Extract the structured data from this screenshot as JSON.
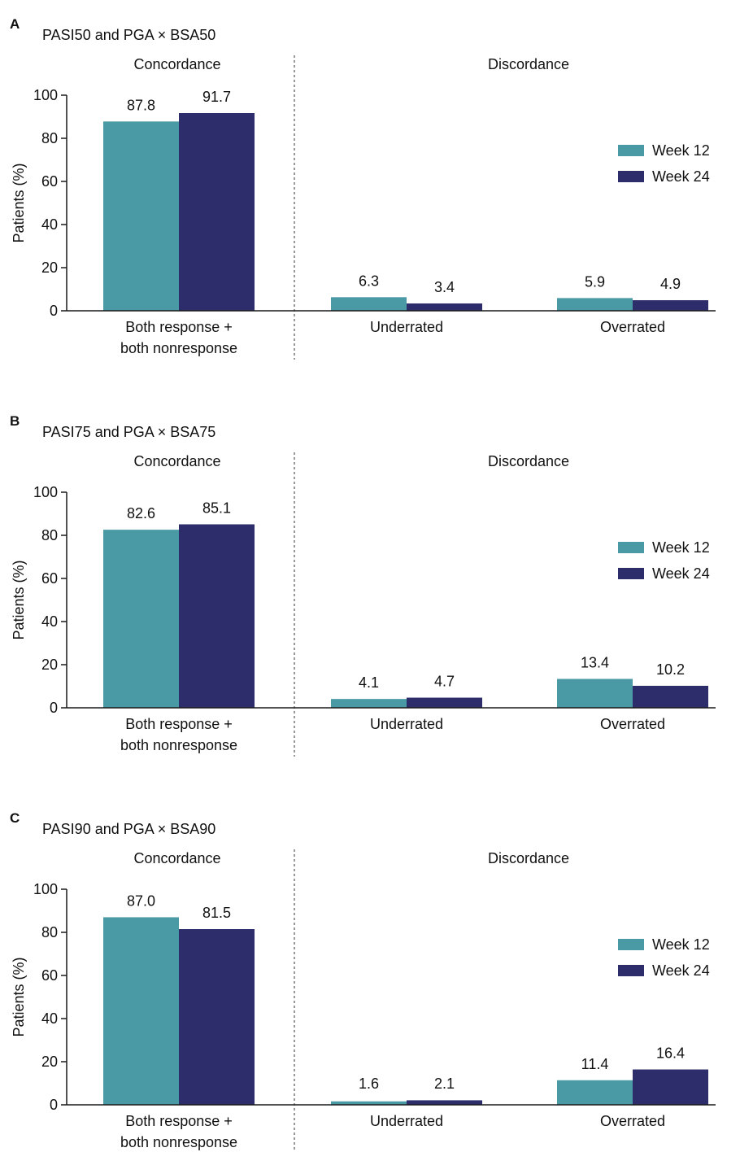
{
  "colors": {
    "week12": "#4a9aa6",
    "week24": "#2d2d6b",
    "axis": "#1a1a1a",
    "divider": "#555555"
  },
  "chart_data": [
    {
      "type": "bar",
      "panel": "A",
      "title": "PASI50 and PGA × BSA50",
      "sections": [
        "Concordance",
        "Discordance"
      ],
      "categories": [
        "Both response + both nonresponse",
        "Underrated",
        "Overrated"
      ],
      "category_lines": [
        [
          "Both response +",
          "both nonresponse"
        ],
        [
          "Underrated"
        ],
        [
          "Overrated"
        ]
      ],
      "ylabel": "Patients (%)",
      "ylim": [
        0,
        100
      ],
      "yticks": [
        0,
        20,
        40,
        60,
        80,
        100
      ],
      "legend_position": "right",
      "grid": false,
      "series": [
        {
          "name": "Week 12",
          "values": [
            87.8,
            6.3,
            5.9
          ],
          "labels": [
            "87.8",
            "6.3",
            "5.9"
          ]
        },
        {
          "name": "Week 24",
          "values": [
            91.7,
            3.4,
            4.9
          ],
          "labels": [
            "91.7",
            "3.4",
            "4.9"
          ]
        }
      ]
    },
    {
      "type": "bar",
      "panel": "B",
      "title": "PASI75 and PGA × BSA75",
      "sections": [
        "Concordance",
        "Discordance"
      ],
      "categories": [
        "Both response + both nonresponse",
        "Underrated",
        "Overrated"
      ],
      "category_lines": [
        [
          "Both response +",
          "both nonresponse"
        ],
        [
          "Underrated"
        ],
        [
          "Overrated"
        ]
      ],
      "ylabel": "Patients (%)",
      "ylim": [
        0,
        100
      ],
      "yticks": [
        0,
        20,
        40,
        60,
        80,
        100
      ],
      "legend_position": "right",
      "grid": false,
      "series": [
        {
          "name": "Week 12",
          "values": [
            82.6,
            4.1,
            13.4
          ],
          "labels": [
            "82.6",
            "4.1",
            "13.4"
          ]
        },
        {
          "name": "Week 24",
          "values": [
            85.1,
            4.7,
            10.2
          ],
          "labels": [
            "85.1",
            "4.7",
            "10.2"
          ]
        }
      ]
    },
    {
      "type": "bar",
      "panel": "C",
      "title": "PASI90 and PGA × BSA90",
      "sections": [
        "Concordance",
        "Discordance"
      ],
      "categories": [
        "Both response + both nonresponse",
        "Underrated",
        "Overrated"
      ],
      "category_lines": [
        [
          "Both response +",
          "both nonresponse"
        ],
        [
          "Underrated"
        ],
        [
          "Overrated"
        ]
      ],
      "ylabel": "Patients (%)",
      "ylim": [
        0,
        100
      ],
      "yticks": [
        0,
        20,
        40,
        60,
        80,
        100
      ],
      "legend_position": "right",
      "grid": false,
      "series": [
        {
          "name": "Week 12",
          "values": [
            87.0,
            1.6,
            11.4
          ],
          "labels": [
            "87.0",
            "1.6",
            "11.4"
          ]
        },
        {
          "name": "Week 24",
          "values": [
            81.5,
            2.1,
            16.4
          ],
          "labels": [
            "81.5",
            "2.1",
            "16.4"
          ]
        }
      ]
    }
  ]
}
